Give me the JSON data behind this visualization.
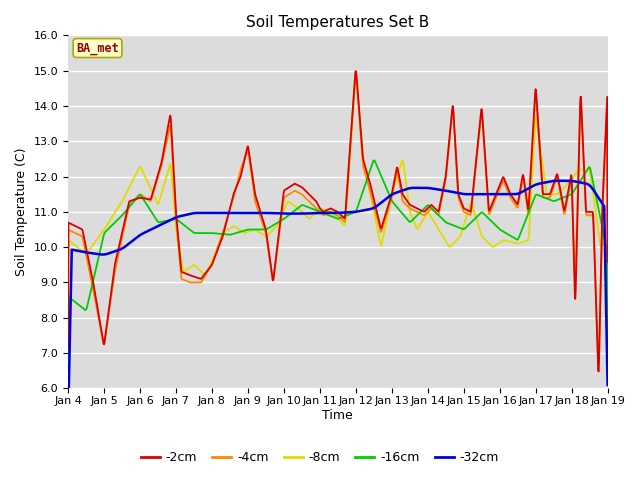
{
  "title": "Soil Temperatures Set B",
  "xlabel": "Time",
  "ylabel": "Soil Temperature (C)",
  "ylim": [
    6.0,
    16.0
  ],
  "yticks": [
    6.0,
    7.0,
    8.0,
    9.0,
    10.0,
    11.0,
    12.0,
    13.0,
    14.0,
    15.0,
    16.0
  ],
  "xtick_labels": [
    "Jan 4",
    "Jan 5",
    "Jan 6",
    "Jan 7",
    "Jan 8",
    "Jan 9",
    "Jan 10",
    "Jan 11",
    "Jan 12",
    "Jan 13",
    "Jan 14",
    "Jan 15",
    "Jan 16",
    "Jan 17",
    "Jan 18",
    "Jan 19"
  ],
  "legend_labels": [
    "-2cm",
    "-4cm",
    "-8cm",
    "-16cm",
    "-32cm"
  ],
  "legend_colors": [
    "#dd0000",
    "#ff8800",
    "#dddd00",
    "#00cc00",
    "#0000dd"
  ],
  "annotation_text": "BA_met",
  "annotation_color": "#990000",
  "annotation_bg": "#ffffcc",
  "annotation_edge": "#aaaa00",
  "plot_bg": "#dcdcdc",
  "grid_color": "#ffffff",
  "title_fontsize": 11,
  "axis_label_fontsize": 9,
  "tick_fontsize": 8,
  "line_colors": [
    "#dd0000",
    "#ff8800",
    "#dddd00",
    "#00cc00",
    "#0000dd"
  ],
  "line_widths": [
    1.3,
    1.3,
    1.3,
    1.3,
    1.8
  ],
  "days": 15,
  "ctrl_x_2cm": [
    0,
    0.4,
    0.7,
    1.0,
    1.3,
    1.7,
    2.0,
    2.3,
    2.6,
    2.85,
    3.0,
    3.15,
    3.4,
    3.7,
    4.0,
    4.3,
    4.6,
    4.8,
    5.0,
    5.2,
    5.5,
    5.7,
    6.0,
    6.3,
    6.5,
    6.7,
    6.9,
    7.0,
    7.1,
    7.3,
    7.5,
    7.7,
    8.0,
    8.2,
    8.4,
    8.7,
    9.0,
    9.15,
    9.3,
    9.5,
    9.7,
    9.9,
    10.1,
    10.3,
    10.5,
    10.7,
    10.85,
    11.0,
    11.2,
    11.5,
    11.7,
    11.9,
    12.1,
    12.3,
    12.5,
    12.65,
    12.8,
    13.0,
    13.2,
    13.4,
    13.6,
    13.8,
    14.0,
    14.1,
    14.25,
    14.4,
    14.6,
    14.75,
    14.85,
    15.0
  ],
  "ctrl_y_2cm": [
    10.7,
    10.5,
    9.0,
    7.2,
    9.5,
    11.3,
    11.4,
    11.35,
    12.4,
    13.8,
    11.0,
    9.3,
    9.2,
    9.1,
    9.5,
    10.3,
    11.5,
    12.0,
    12.9,
    11.5,
    10.5,
    9.0,
    11.6,
    11.8,
    11.7,
    11.5,
    11.3,
    11.1,
    11.0,
    11.1,
    11.0,
    10.8,
    15.1,
    12.5,
    11.8,
    10.5,
    11.5,
    12.3,
    11.5,
    11.2,
    11.1,
    11.0,
    11.2,
    11.0,
    12.0,
    14.1,
    11.5,
    11.1,
    11.0,
    14.0,
    11.0,
    11.5,
    12.0,
    11.5,
    11.2,
    12.1,
    11.0,
    14.6,
    11.5,
    11.5,
    12.1,
    11.0,
    12.1,
    8.2,
    14.5,
    11.0,
    11.0,
    6.2,
    11.0,
    14.5
  ],
  "ctrl_x_4cm": [
    0,
    0.4,
    0.7,
    1.0,
    1.3,
    1.7,
    2.0,
    2.3,
    2.6,
    2.85,
    3.0,
    3.15,
    3.4,
    3.7,
    4.0,
    4.3,
    4.6,
    4.8,
    5.0,
    5.2,
    5.5,
    5.7,
    6.0,
    6.3,
    6.5,
    6.7,
    6.9,
    7.0,
    7.1,
    7.3,
    7.5,
    7.7,
    8.0,
    8.2,
    8.4,
    8.7,
    9.0,
    9.15,
    9.3,
    9.5,
    9.7,
    9.9,
    10.1,
    10.3,
    10.5,
    10.7,
    10.85,
    11.0,
    11.2,
    11.5,
    11.7,
    11.9,
    12.1,
    12.3,
    12.5,
    12.65,
    12.8,
    13.0,
    13.2,
    13.4,
    13.6,
    13.8,
    14.0,
    14.1,
    14.25,
    14.4,
    14.6,
    14.75,
    14.85,
    15.0
  ],
  "ctrl_y_4cm": [
    10.5,
    10.3,
    8.8,
    7.2,
    9.3,
    11.2,
    11.5,
    11.3,
    12.3,
    13.5,
    10.8,
    9.1,
    9.0,
    9.0,
    9.5,
    10.4,
    11.4,
    12.2,
    12.8,
    11.3,
    10.4,
    9.0,
    11.4,
    11.6,
    11.5,
    11.3,
    11.1,
    11.0,
    10.9,
    11.0,
    10.9,
    10.7,
    15.1,
    12.3,
    11.6,
    10.4,
    11.4,
    12.2,
    11.3,
    11.1,
    11.0,
    10.9,
    11.1,
    10.9,
    11.9,
    14.0,
    11.4,
    11.0,
    10.9,
    13.9,
    10.9,
    11.4,
    11.9,
    11.4,
    11.1,
    12.0,
    10.9,
    14.5,
    11.4,
    11.4,
    12.0,
    10.9,
    12.0,
    8.8,
    14.4,
    10.9,
    10.9,
    6.4,
    10.8,
    14.3
  ],
  "ctrl_x_8cm": [
    0,
    0.5,
    1.0,
    1.5,
    2.0,
    2.5,
    2.85,
    3.0,
    3.2,
    3.5,
    3.8,
    4.0,
    4.3,
    4.6,
    4.9,
    5.2,
    5.5,
    5.8,
    6.1,
    6.4,
    6.7,
    7.0,
    7.3,
    7.5,
    7.7,
    8.0,
    8.2,
    8.4,
    8.7,
    9.0,
    9.3,
    9.5,
    9.7,
    10.0,
    10.3,
    10.6,
    10.9,
    11.2,
    11.5,
    11.8,
    12.1,
    12.5,
    12.8,
    13.0,
    13.3,
    13.6,
    13.9,
    14.2,
    14.5,
    14.8,
    15.0
  ],
  "ctrl_y_8cm": [
    10.2,
    9.8,
    10.5,
    11.3,
    12.3,
    11.2,
    12.4,
    10.5,
    9.3,
    9.5,
    9.2,
    9.6,
    10.4,
    10.6,
    10.4,
    10.5,
    10.3,
    10.6,
    11.3,
    11.1,
    10.8,
    11.1,
    11.0,
    10.8,
    10.6,
    15.0,
    12.5,
    11.5,
    10.0,
    11.5,
    12.5,
    11.0,
    10.5,
    11.0,
    10.5,
    10.0,
    10.3,
    11.3,
    10.3,
    10.0,
    10.2,
    10.1,
    10.2,
    13.8,
    11.5,
    11.5,
    11.8,
    12.2,
    12.2,
    10.0,
    10.2
  ],
  "ctrl_x_16cm": [
    0,
    0.5,
    1.0,
    1.5,
    2.0,
    2.5,
    3.0,
    3.5,
    4.0,
    4.5,
    5.0,
    5.5,
    6.0,
    6.5,
    7.0,
    7.5,
    8.0,
    8.5,
    9.0,
    9.5,
    10.0,
    10.5,
    11.0,
    11.5,
    12.0,
    12.5,
    13.0,
    13.5,
    14.0,
    14.5,
    15.0
  ],
  "ctrl_y_16cm": [
    8.6,
    8.2,
    10.4,
    10.9,
    11.5,
    10.7,
    10.8,
    10.4,
    10.4,
    10.35,
    10.5,
    10.5,
    10.8,
    11.2,
    11.0,
    10.8,
    11.0,
    12.5,
    11.3,
    10.7,
    11.2,
    10.7,
    10.5,
    11.0,
    10.5,
    10.2,
    11.5,
    11.3,
    11.5,
    12.3,
    9.8
  ],
  "ctrl_x_32cm": [
    0,
    0.5,
    1.0,
    1.5,
    2.0,
    2.5,
    3.0,
    3.5,
    4.0,
    4.5,
    5.0,
    5.5,
    6.0,
    6.5,
    7.0,
    7.5,
    8.0,
    8.5,
    9.0,
    9.5,
    10.0,
    10.5,
    11.0,
    11.5,
    12.0,
    12.5,
    13.0,
    13.5,
    14.0,
    14.5,
    15.0
  ],
  "ctrl_y_32cm": [
    9.95,
    9.85,
    9.78,
    9.95,
    10.35,
    10.6,
    10.85,
    10.97,
    10.97,
    10.97,
    10.97,
    10.97,
    10.95,
    10.95,
    10.97,
    10.97,
    11.0,
    11.1,
    11.5,
    11.68,
    11.68,
    11.6,
    11.5,
    11.5,
    11.5,
    11.5,
    11.78,
    11.88,
    11.88,
    11.78,
    11.0
  ]
}
